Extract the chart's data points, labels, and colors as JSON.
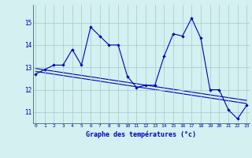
{
  "x_hours": [
    0,
    1,
    2,
    3,
    4,
    5,
    6,
    7,
    8,
    9,
    10,
    11,
    12,
    13,
    14,
    15,
    16,
    17,
    18,
    19,
    20,
    21,
    22,
    23
  ],
  "temperatures": [
    12.7,
    12.9,
    13.1,
    13.1,
    13.8,
    13.1,
    14.8,
    14.4,
    14.0,
    14.0,
    12.6,
    12.1,
    12.2,
    12.2,
    13.5,
    14.5,
    14.4,
    15.2,
    14.3,
    12.0,
    12.0,
    11.1,
    10.7,
    11.3
  ],
  "bg_color": "#d4f0f0",
  "line_color": "#0000bb",
  "grid_color": "#a0cccc",
  "xlabel": "Graphe des températures (°c)",
  "ylim": [
    10.5,
    15.8
  ],
  "yticks": [
    11,
    12,
    13,
    14,
    15
  ],
  "xticks": [
    0,
    1,
    2,
    3,
    4,
    5,
    6,
    7,
    8,
    9,
    10,
    11,
    12,
    13,
    14,
    15,
    16,
    17,
    18,
    19,
    20,
    21,
    22,
    23
  ],
  "trend1_start_y": 12.82,
  "trend1_end_y": 11.38,
  "trend2_start_y": 12.95,
  "trend2_end_y": 11.52
}
